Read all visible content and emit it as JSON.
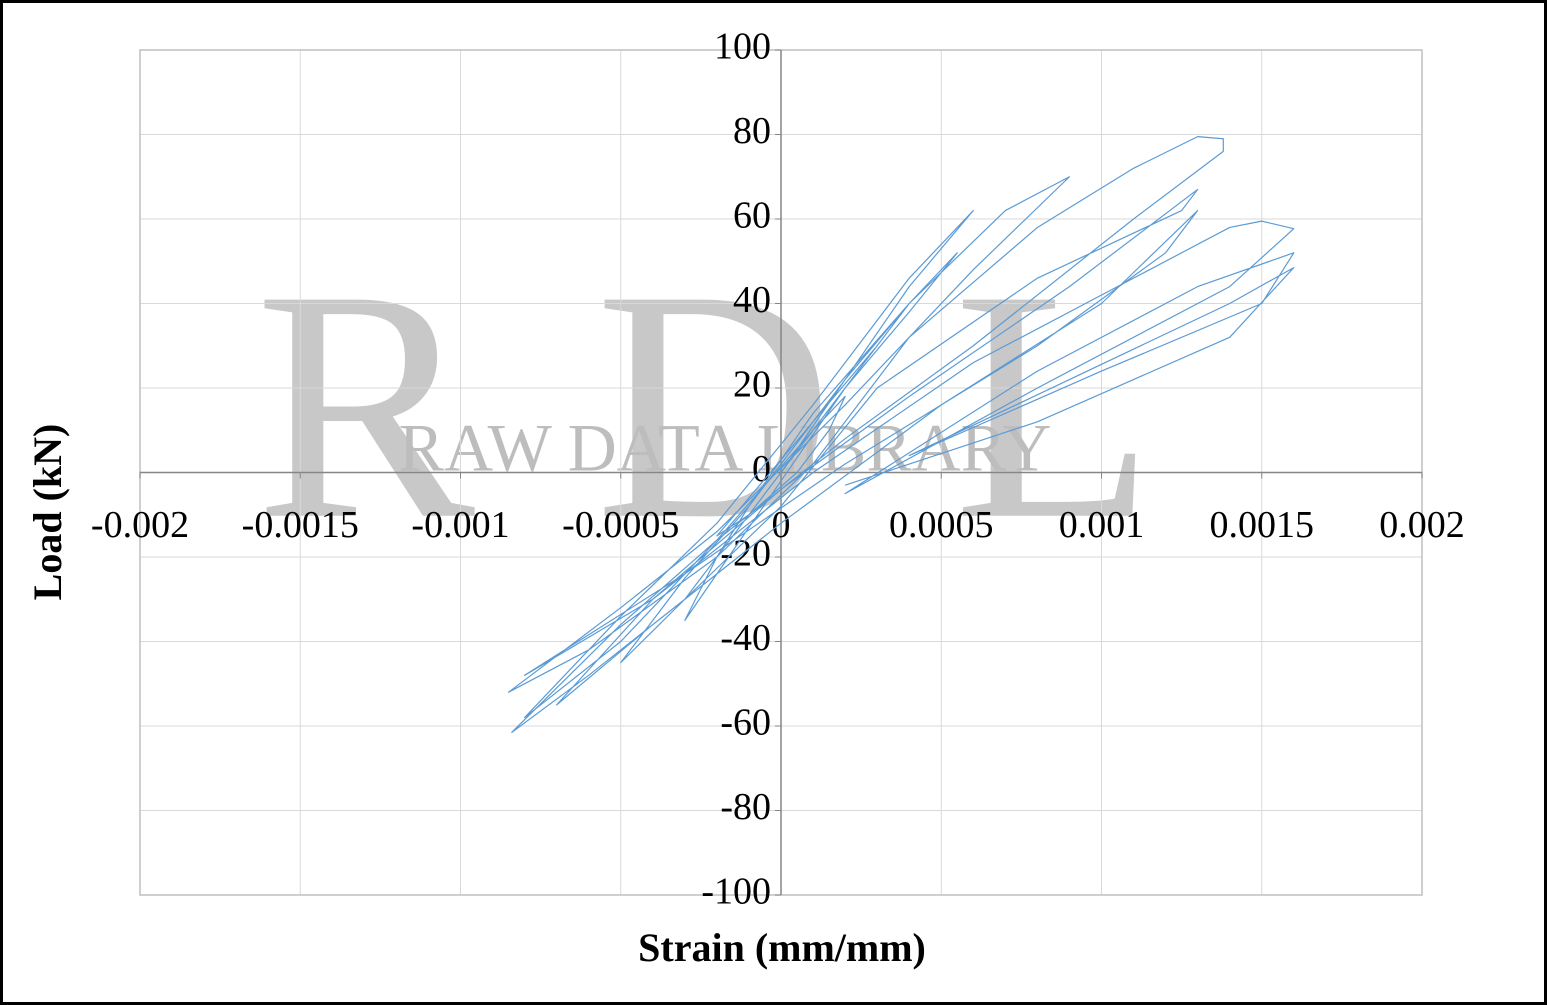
{
  "chart_data": {
    "type": "line",
    "x_label": "Strain (mm/mm)",
    "y_label": "Load (kN)",
    "annotations": [
      "RDL",
      "RAW DATA LIBRARY"
    ],
    "xlim": [
      -0.002,
      0.002
    ],
    "xticks": [
      -0.002,
      -0.0015,
      -0.001,
      -0.0005,
      0,
      0.0005,
      0.001,
      0.0015,
      0.002
    ],
    "ylim": [
      -100,
      100
    ],
    "yticks": [
      -100,
      -80,
      -60,
      -40,
      -20,
      0,
      20,
      40,
      60,
      80,
      100
    ],
    "grid": true,
    "series": [
      {
        "name": "Load",
        "color": "#5b9bd5",
        "x": [
          0,
          5e-05,
          0.0001,
          0.0002,
          0.00015,
          5e-05,
          -0.0001,
          -0.0002,
          -0.0001,
          0,
          0.0001,
          0.0002,
          0.0003,
          0.0004,
          0.0003,
          0.0001,
          -0.0001,
          -0.0002,
          -0.0003,
          -0.0002,
          0,
          0.0002,
          0.0004,
          0.00055,
          0.0004,
          0.0001,
          -0.0001,
          -0.0003,
          -0.0005,
          -0.0003,
          0,
          0.0002,
          0.0004,
          0.0006,
          0.0004,
          0.0001,
          -0.0002,
          -0.0005,
          -0.0008,
          -0.0005,
          -0.0002,
          0.0001,
          0.0004,
          0.0007,
          0.0009,
          0.0006,
          0.0002,
          -0.0002,
          -0.0005,
          -0.00085,
          -0.0006,
          -0.0002,
          0.0001,
          0.0004,
          0.0008,
          0.0011,
          0.0013,
          0.00138,
          0.00138,
          0.0011,
          0.0006,
          0.0002,
          -0.0002,
          -0.0005,
          -0.00084,
          -0.0006,
          -0.0003,
          0,
          0.0003,
          0.0008,
          0.00125,
          0.0013,
          0.0009,
          0.0004,
          0,
          -0.0004,
          -0.0007,
          -0.0004,
          0,
          0.0005,
          0.001,
          0.0013,
          0.0012,
          0.0008,
          0.0002,
          -0.0003,
          -0.0008,
          -0.0004,
          0.0001,
          0.0006,
          0.0011,
          0.0014,
          0.0015,
          0.0016,
          0.0014,
          0.0008,
          0.0002,
          0.0008,
          0.0013,
          0.0016,
          0.0015,
          0.001,
          0.0004,
          0.0009,
          0.0014,
          0.0016,
          0.0014,
          0.0008,
          0.0002
        ],
        "values": [
          0,
          5,
          10,
          18,
          10,
          0,
          -10,
          -15,
          -6,
          3,
          12,
          22,
          31,
          40,
          30,
          12,
          -8,
          -20,
          -35,
          -24,
          -2,
          20,
          38,
          52,
          40,
          14,
          -8,
          -25,
          -45,
          -30,
          0,
          22,
          44,
          62,
          46,
          16,
          -12,
          -34,
          -58,
          -40,
          -16,
          10,
          40,
          62,
          70,
          48,
          16,
          -14,
          -32,
          -52,
          -42,
          -20,
          2,
          32,
          58,
          72,
          79.5,
          79,
          76,
          60,
          30,
          8,
          -16,
          -36,
          -61.5,
          -48,
          -30,
          -8,
          20,
          46,
          62,
          67,
          44,
          18,
          -4,
          -30,
          -55,
          -36,
          -12,
          16,
          40,
          62,
          52,
          30,
          2,
          -24,
          -48,
          -30,
          0,
          26,
          46,
          58,
          59.5,
          57.7,
          44,
          20,
          -5,
          24,
          44,
          52,
          40,
          24,
          4,
          22,
          40,
          48.5,
          32,
          12,
          -3
        ]
      }
    ]
  }
}
